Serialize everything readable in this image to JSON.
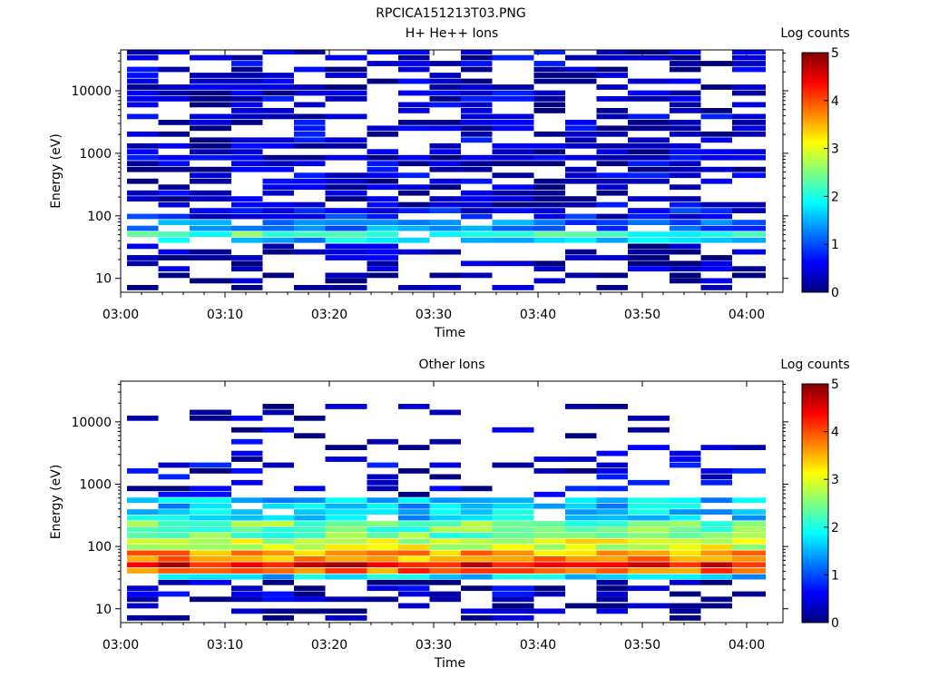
{
  "figure": {
    "title": "RPCICA151213T03.PNG"
  },
  "colors": {
    "colormap": [
      "#00007f",
      "#0000ff",
      "#007fff",
      "#00ffff",
      "#7fff7f",
      "#ffff00",
      "#ff7f00",
      "#ff0000",
      "#7f0000"
    ]
  },
  "chart_data": [
    {
      "type": "heatmap",
      "title": "H+ He++ Ions",
      "xlabel": "Time",
      "ylabel": "Energy (eV)",
      "y_scale": "log",
      "ylim": [
        6,
        45000
      ],
      "x_tick_labels": [
        "03:00",
        "03:10",
        "03:20",
        "03:30",
        "03:40",
        "03:50",
        "04:00"
      ],
      "y_tick_labels": [
        "10",
        "100",
        "1000",
        "10000"
      ],
      "x_time_columns": [
        "03:00",
        "03:03",
        "03:06",
        "03:10",
        "03:13",
        "03:16",
        "03:19",
        "03:23",
        "03:26",
        "03:29",
        "03:32",
        "03:35",
        "03:39",
        "03:42",
        "03:45",
        "03:48",
        "03:52",
        "03:55",
        "03:58"
      ],
      "energy_bins_eV": [
        7,
        9,
        11,
        14,
        17,
        21,
        26,
        32,
        40,
        50,
        62,
        77,
        96,
        119,
        148,
        184,
        228,
        283,
        352,
        437,
        543,
        674,
        837,
        1040,
        1291,
        1603,
        1991,
        2472,
        3070,
        3812,
        4734,
        5879,
        7300,
        9066,
        11258,
        13980,
        17361,
        21559,
        26772,
        33245,
        41284
      ],
      "colorbar": {
        "label": "Log counts",
        "range": [
          0,
          5
        ],
        "tick_labels": [
          "0",
          "1",
          "2",
          "3",
          "4",
          "5"
        ]
      },
      "fill_mode": "sparse-high",
      "bands": [
        {
          "from_eV": 7,
          "to_eV": 14,
          "log_counts": 0.1,
          "fill": 0.45
        },
        {
          "from_eV": 14,
          "to_eV": 30,
          "log_counts": 0.2,
          "fill": 0.55
        },
        {
          "from_eV": 30,
          "to_eV": 36,
          "log_counts": 0.3,
          "fill": 0.3
        },
        {
          "from_eV": 36,
          "to_eV": 45,
          "log_counts": 1.6,
          "fill": 0.9
        },
        {
          "from_eV": 45,
          "to_eV": 58,
          "log_counts": 2.2,
          "fill": 0.95
        },
        {
          "from_eV": 58,
          "to_eV": 80,
          "log_counts": 1.2,
          "fill": 0.85
        },
        {
          "from_eV": 80,
          "to_eV": 130,
          "log_counts": 0.6,
          "fill": 0.8
        },
        {
          "from_eV": 130,
          "to_eV": 45000,
          "log_counts": 0.35,
          "fill": 0.62
        }
      ]
    },
    {
      "type": "heatmap",
      "title": "Other Ions",
      "xlabel": "Time",
      "ylabel": "Energy (eV)",
      "y_scale": "log",
      "ylim": [
        6,
        45000
      ],
      "x_tick_labels": [
        "03:00",
        "03:10",
        "03:20",
        "03:30",
        "03:40",
        "03:50",
        "04:00"
      ],
      "y_tick_labels": [
        "10",
        "100",
        "1000",
        "10000"
      ],
      "x_time_columns": [
        "03:00",
        "03:03",
        "03:06",
        "03:10",
        "03:13",
        "03:16",
        "03:19",
        "03:23",
        "03:26",
        "03:29",
        "03:32",
        "03:35",
        "03:39",
        "03:42",
        "03:45",
        "03:48",
        "03:52",
        "03:55",
        "03:58"
      ],
      "energy_bins_eV": [
        7,
        9,
        11,
        14,
        17,
        21,
        26,
        32,
        40,
        50,
        62,
        77,
        96,
        119,
        148,
        184,
        228,
        283,
        352,
        437,
        543,
        674,
        837,
        1040,
        1291,
        1603,
        1991,
        2472,
        3070,
        3812,
        4734,
        5879,
        7300,
        9066,
        11258,
        13980,
        17361,
        21559,
        26772,
        33245,
        41284
      ],
      "colorbar": {
        "label": "Log counts",
        "range": [
          0,
          5
        ],
        "tick_labels": [
          "0",
          "1",
          "2",
          "3",
          "4",
          "5"
        ]
      },
      "fill_mode": "dense-low",
      "bands": [
        {
          "from_eV": 7,
          "to_eV": 14,
          "log_counts": 0.15,
          "fill": 0.4
        },
        {
          "from_eV": 14,
          "to_eV": 30,
          "log_counts": 0.3,
          "fill": 0.5
        },
        {
          "from_eV": 30,
          "to_eV": 36,
          "log_counts": 1.7,
          "fill": 0.95
        },
        {
          "from_eV": 36,
          "to_eV": 45,
          "log_counts": 3.9,
          "fill": 1.0
        },
        {
          "from_eV": 45,
          "to_eV": 58,
          "log_counts": 4.5,
          "fill": 1.0
        },
        {
          "from_eV": 58,
          "to_eV": 80,
          "log_counts": 3.6,
          "fill": 1.0
        },
        {
          "from_eV": 80,
          "to_eV": 130,
          "log_counts": 2.9,
          "fill": 1.0
        },
        {
          "from_eV": 130,
          "to_eV": 250,
          "log_counts": 2.4,
          "fill": 0.98
        },
        {
          "from_eV": 250,
          "to_eV": 600,
          "log_counts": 1.6,
          "fill": 0.9
        },
        {
          "from_eV": 600,
          "to_eV": 2000,
          "log_counts": 0.4,
          "fill": 0.3
        },
        {
          "from_eV": 2000,
          "to_eV": 20000,
          "log_counts": 0.3,
          "fill": 0.22
        },
        {
          "from_eV": 20000,
          "to_eV": 45000,
          "log_counts": 0.2,
          "fill": 0.02
        }
      ]
    }
  ]
}
